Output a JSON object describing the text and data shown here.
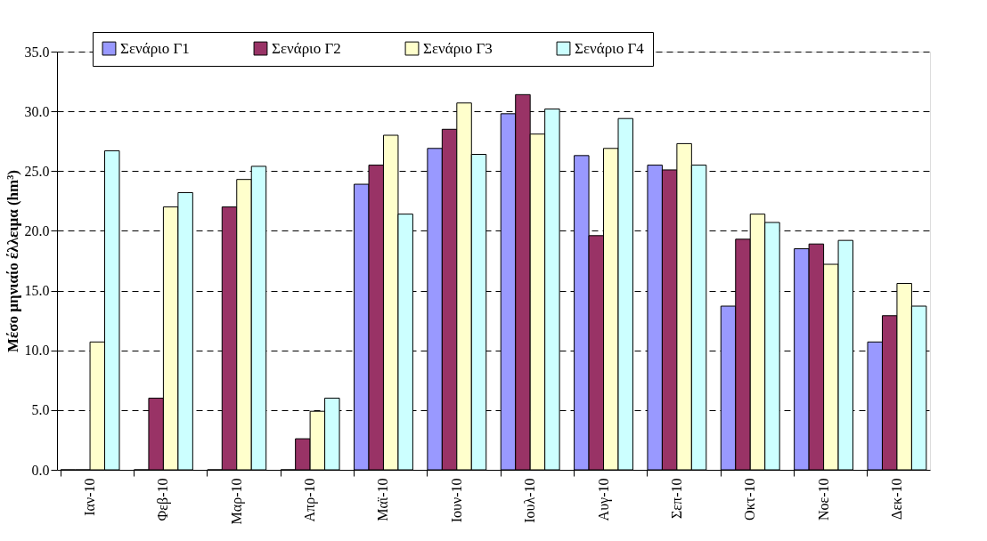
{
  "chart_data": {
    "type": "bar",
    "ylabel": "Μέσο μηνιαίο έλλειμα (hm³)",
    "categories": [
      "Ιαν-10",
      "Φεβ-10",
      "Μαρ-10",
      "Απρ-10",
      "Μαϊ-10",
      "Ιουν-10",
      "Ιουλ-10",
      "Αυγ-10",
      "Σεπ-10",
      "Οκτ-10",
      "Νοε-10",
      "Δεκ-10"
    ],
    "series": [
      {
        "name": "Σενάριο Γ1",
        "color": "#9999ff",
        "values": [
          0,
          0,
          0,
          0,
          23.9,
          26.9,
          29.8,
          26.3,
          25.5,
          13.7,
          18.5,
          10.7
        ]
      },
      {
        "name": "Σενάριο Γ2",
        "color": "#993366",
        "values": [
          0,
          6.0,
          22.0,
          2.6,
          25.5,
          28.5,
          31.4,
          19.6,
          25.1,
          19.3,
          18.9,
          12.9
        ]
      },
      {
        "name": "Σενάριο Γ3",
        "color": "#ffffcc",
        "values": [
          10.7,
          22.0,
          24.3,
          4.9,
          28.0,
          30.7,
          28.1,
          26.9,
          27.3,
          21.4,
          17.2,
          15.6
        ]
      },
      {
        "name": "Σενάριο Γ4",
        "color": "#ccffff",
        "values": [
          26.7,
          23.2,
          25.4,
          6.0,
          21.4,
          26.4,
          30.2,
          29.4,
          25.5,
          20.7,
          19.2,
          13.7
        ]
      }
    ],
    "ylim": [
      0,
      35
    ],
    "yticks": [
      {
        "value": 0,
        "label": "0.0"
      },
      {
        "value": 5,
        "label": "5.0"
      },
      {
        "value": 10,
        "label": "10.0"
      },
      {
        "value": 15,
        "label": "15.0"
      },
      {
        "value": 20,
        "label": "20.0"
      },
      {
        "value": 25,
        "label": "25.0"
      },
      {
        "value": 30,
        "label": "30.0"
      },
      {
        "value": 35,
        "label": "35.0"
      }
    ],
    "grid": "y",
    "legend": "top"
  }
}
